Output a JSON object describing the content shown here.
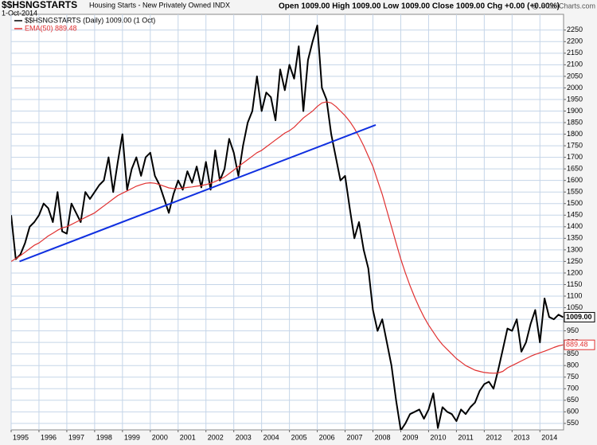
{
  "chart_data": {
    "type": "line",
    "title": "$$HSNGSTARTS",
    "subtitle": "Housing Starts - New Privately Owned INDX",
    "source": "@ StockCharts.com",
    "date": "1-Oct-2014",
    "quote": "Open 1009.00 High 1009.00 Low 1009.00 Close 1009.00 Chg +0.00 (+0.00%)",
    "x": [
      1995.0,
      1995.167,
      1995.333,
      1995.5,
      1995.667,
      1995.833,
      1996.0,
      1996.167,
      1996.333,
      1996.5,
      1996.667,
      1996.833,
      1997.0,
      1997.167,
      1997.333,
      1997.5,
      1997.667,
      1997.833,
      1998.0,
      1998.167,
      1998.333,
      1998.5,
      1998.667,
      1998.833,
      1999.0,
      1999.167,
      1999.333,
      1999.5,
      1999.667,
      1999.833,
      2000.0,
      2000.167,
      2000.333,
      2000.5,
      2000.667,
      2000.833,
      2001.0,
      2001.167,
      2001.333,
      2001.5,
      2001.667,
      2001.833,
      2002.0,
      2002.167,
      2002.333,
      2002.5,
      2002.667,
      2002.833,
      2003.0,
      2003.167,
      2003.333,
      2003.5,
      2003.667,
      2003.833,
      2004.0,
      2004.167,
      2004.333,
      2004.5,
      2004.667,
      2004.833,
      2005.0,
      2005.167,
      2005.333,
      2005.5,
      2005.667,
      2005.833,
      2006.0,
      2006.167,
      2006.333,
      2006.5,
      2006.667,
      2006.833,
      2007.0,
      2007.167,
      2007.333,
      2007.5,
      2007.667,
      2007.833,
      2008.0,
      2008.167,
      2008.333,
      2008.5,
      2008.667,
      2008.833,
      2009.0,
      2009.167,
      2009.333,
      2009.5,
      2009.667,
      2009.833,
      2010.0,
      2010.167,
      2010.333,
      2010.5,
      2010.667,
      2010.833,
      2011.0,
      2011.167,
      2011.333,
      2011.5,
      2011.667,
      2011.833,
      2012.0,
      2012.167,
      2012.333,
      2012.5,
      2012.667,
      2012.833,
      2013.0,
      2013.167,
      2013.333,
      2013.5,
      2013.667,
      2013.833,
      2014.0,
      2014.167,
      2014.333,
      2014.5,
      2014.667,
      2014.833
    ],
    "series": [
      {
        "name": "$$HSNGSTARTS (Daily) 1009.00 (1 Oct)",
        "color": "#000000",
        "width": 2,
        "end_label": "1009.00",
        "values": [
          1450,
          1260,
          1280,
          1330,
          1400,
          1420,
          1450,
          1500,
          1480,
          1420,
          1550,
          1380,
          1370,
          1500,
          1460,
          1420,
          1550,
          1520,
          1550,
          1580,
          1600,
          1700,
          1550,
          1680,
          1800,
          1560,
          1650,
          1700,
          1620,
          1700,
          1720,
          1620,
          1580,
          1520,
          1460,
          1540,
          1600,
          1560,
          1640,
          1590,
          1660,
          1570,
          1680,
          1560,
          1730,
          1600,
          1650,
          1780,
          1720,
          1620,
          1750,
          1850,
          1900,
          2050,
          1900,
          1980,
          1960,
          1860,
          2080,
          1990,
          2100,
          2040,
          2180,
          1900,
          2120,
          2200,
          2270,
          2000,
          1950,
          1800,
          1700,
          1600,
          1620,
          1480,
          1350,
          1420,
          1300,
          1220,
          1040,
          950,
          1000,
          900,
          800,
          650,
          520,
          550,
          590,
          600,
          610,
          570,
          610,
          680,
          530,
          620,
          600,
          590,
          560,
          610,
          590,
          620,
          640,
          690,
          720,
          730,
          700,
          780,
          870,
          960,
          950,
          1000,
          860,
          900,
          980,
          1040,
          900,
          1090,
          1010,
          1000,
          1020,
          1009
        ]
      },
      {
        "name": "EMA(50) 889.48",
        "color": "#e03030",
        "width": 1.2,
        "end_label": "889.48",
        "values": [
          1250,
          1262,
          1275,
          1290,
          1305,
          1320,
          1330,
          1345,
          1360,
          1372,
          1385,
          1395,
          1400,
          1410,
          1420,
          1430,
          1440,
          1450,
          1460,
          1475,
          1490,
          1505,
          1520,
          1535,
          1545,
          1555,
          1565,
          1575,
          1582,
          1588,
          1590,
          1588,
          1582,
          1575,
          1568,
          1565,
          1565,
          1567,
          1570,
          1572,
          1575,
          1578,
          1582,
          1588,
          1595,
          1605,
          1615,
          1630,
          1645,
          1660,
          1675,
          1690,
          1705,
          1720,
          1730,
          1745,
          1760,
          1775,
          1790,
          1805,
          1815,
          1830,
          1850,
          1870,
          1885,
          1900,
          1920,
          1935,
          1940,
          1935,
          1920,
          1900,
          1880,
          1855,
          1825,
          1790,
          1750,
          1705,
          1660,
          1600,
          1540,
          1470,
          1400,
          1330,
          1260,
          1200,
          1145,
          1095,
          1050,
          1010,
          975,
          945,
          915,
          890,
          870,
          850,
          830,
          815,
          800,
          790,
          780,
          775,
          770,
          768,
          767,
          768,
          775,
          790,
          800,
          810,
          820,
          830,
          840,
          848,
          855,
          862,
          870,
          878,
          885,
          889.48
        ]
      }
    ],
    "trendline": {
      "x": [
        1995.3,
        2008.1
      ],
      "y": [
        1250,
        1840
      ],
      "color": "#1030e0"
    },
    "xlim": [
      1995,
      2014.85
    ],
    "xticks": [
      1995,
      1996,
      1997,
      1998,
      1999,
      2000,
      2001,
      2002,
      2003,
      2004,
      2005,
      2006,
      2007,
      2008,
      2009,
      2010,
      2011,
      2012,
      2013,
      2014
    ],
    "ylim": [
      522,
      2318
    ],
    "yticks": [
      550,
      600,
      650,
      700,
      750,
      800,
      850,
      900,
      950,
      1000,
      1050,
      1100,
      1150,
      1200,
      1250,
      1300,
      1350,
      1400,
      1450,
      1500,
      1550,
      1600,
      1650,
      1700,
      1750,
      1800,
      1850,
      1900,
      1950,
      2000,
      2050,
      2100,
      2150,
      2200,
      2250
    ],
    "grid": true
  }
}
